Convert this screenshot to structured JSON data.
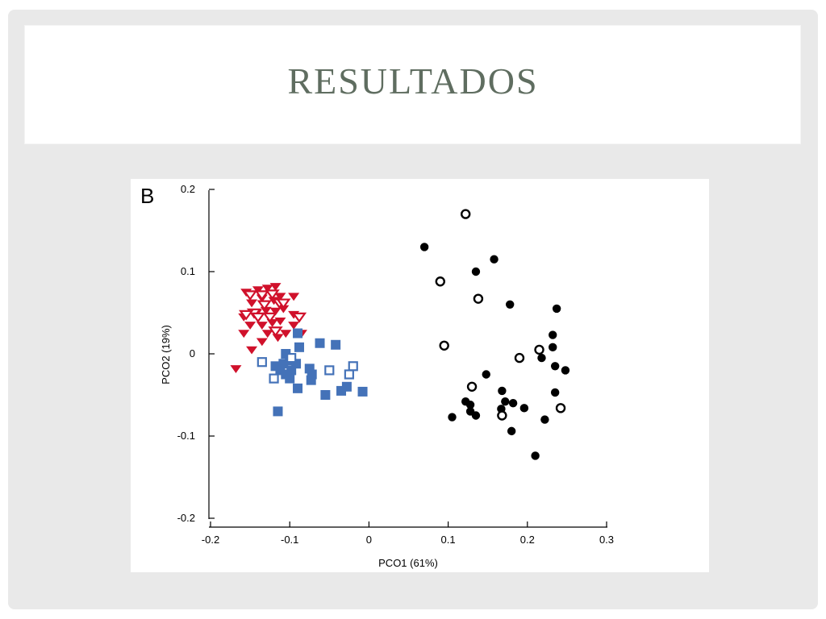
{
  "slide": {
    "title": "RESULTADOS",
    "title_color": "#5f6d60",
    "background_color": "#e9e9e9"
  },
  "chart_data": {
    "type": "scatter",
    "panel_label": "B",
    "xlabel": "PCO1 (61%)",
    "ylabel": "PCO2 (19%)",
    "xlim": [
      -0.2,
      0.3
    ],
    "ylim": [
      -0.2,
      0.2
    ],
    "xticks": [
      -0.2,
      -0.1,
      0,
      0.1,
      0.2,
      0.3
    ],
    "xtick_labels": [
      "-0.2",
      "-0.1",
      "0",
      "0.1",
      "0.2",
      "0.3"
    ],
    "yticks": [
      -0.2,
      -0.1,
      0,
      0.1,
      0.2
    ],
    "ytick_labels": [
      "-0.2",
      "-0.1",
      "0",
      "0.1",
      "0.2"
    ],
    "grid": false,
    "legend": "none",
    "series": [
      {
        "marker": "triangle-down-filled",
        "color": "#d0112b",
        "points": [
          [
            -0.155,
            0.075
          ],
          [
            -0.14,
            0.078
          ],
          [
            -0.128,
            0.08
          ],
          [
            -0.118,
            0.082
          ],
          [
            -0.148,
            0.062
          ],
          [
            -0.135,
            0.068
          ],
          [
            -0.12,
            0.065
          ],
          [
            -0.112,
            0.07
          ],
          [
            -0.095,
            0.07
          ],
          [
            -0.158,
            0.045
          ],
          [
            -0.142,
            0.05
          ],
          [
            -0.13,
            0.053
          ],
          [
            -0.118,
            0.052
          ],
          [
            -0.108,
            0.055
          ],
          [
            -0.095,
            0.048
          ],
          [
            -0.15,
            0.035
          ],
          [
            -0.135,
            0.035
          ],
          [
            -0.122,
            0.038
          ],
          [
            -0.112,
            0.04
          ],
          [
            -0.095,
            0.035
          ],
          [
            -0.158,
            0.025
          ],
          [
            -0.128,
            0.025
          ],
          [
            -0.105,
            0.025
          ],
          [
            -0.085,
            0.025
          ],
          [
            -0.148,
            0.005
          ],
          [
            -0.135,
            0.015
          ],
          [
            -0.115,
            0.02
          ],
          [
            -0.168,
            -0.018
          ]
        ]
      },
      {
        "marker": "triangle-down-open",
        "color": "#d0112b",
        "points": [
          [
            -0.15,
            0.072
          ],
          [
            -0.135,
            0.072
          ],
          [
            -0.122,
            0.073
          ],
          [
            -0.145,
            0.05
          ],
          [
            -0.132,
            0.06
          ],
          [
            -0.113,
            0.062
          ],
          [
            -0.108,
            0.062
          ],
          [
            -0.155,
            0.048
          ],
          [
            -0.125,
            0.045
          ],
          [
            -0.088,
            0.045
          ],
          [
            -0.14,
            0.045
          ],
          [
            -0.118,
            0.028
          ]
        ]
      },
      {
        "marker": "square-filled",
        "color": "#4472b8",
        "points": [
          [
            -0.09,
            0.025
          ],
          [
            -0.088,
            0.008
          ],
          [
            -0.062,
            0.013
          ],
          [
            -0.042,
            0.011
          ],
          [
            -0.105,
            0.0
          ],
          [
            -0.118,
            -0.015
          ],
          [
            -0.108,
            -0.012
          ],
          [
            -0.1,
            -0.008
          ],
          [
            -0.092,
            -0.012
          ],
          [
            -0.112,
            -0.02
          ],
          [
            -0.105,
            -0.025
          ],
          [
            -0.098,
            -0.02
          ],
          [
            -0.075,
            -0.018
          ],
          [
            -0.072,
            -0.025
          ],
          [
            -0.073,
            -0.032
          ],
          [
            -0.1,
            -0.03
          ],
          [
            -0.09,
            -0.042
          ],
          [
            -0.055,
            -0.05
          ],
          [
            -0.035,
            -0.045
          ],
          [
            -0.028,
            -0.04
          ],
          [
            -0.008,
            -0.046
          ],
          [
            -0.115,
            -0.07
          ]
        ]
      },
      {
        "marker": "square-open",
        "color": "#4472b8",
        "points": [
          [
            -0.135,
            -0.01
          ],
          [
            -0.098,
            -0.005
          ],
          [
            -0.12,
            -0.03
          ],
          [
            -0.05,
            -0.02
          ],
          [
            -0.025,
            -0.025
          ],
          [
            -0.02,
            -0.015
          ]
        ]
      },
      {
        "marker": "circle-filled",
        "color": "#000000",
        "points": [
          [
            0.07,
            0.13
          ],
          [
            0.158,
            0.115
          ],
          [
            0.135,
            0.1
          ],
          [
            0.178,
            0.06
          ],
          [
            0.237,
            0.055
          ],
          [
            0.232,
            0.023
          ],
          [
            0.232,
            0.008
          ],
          [
            0.218,
            -0.005
          ],
          [
            0.235,
            -0.015
          ],
          [
            0.248,
            -0.02
          ],
          [
            0.148,
            -0.025
          ],
          [
            0.168,
            -0.045
          ],
          [
            0.235,
            -0.047
          ],
          [
            0.122,
            -0.058
          ],
          [
            0.128,
            -0.062
          ],
          [
            0.172,
            -0.058
          ],
          [
            0.182,
            -0.06
          ],
          [
            0.196,
            -0.066
          ],
          [
            0.167,
            -0.067
          ],
          [
            0.128,
            -0.07
          ],
          [
            0.135,
            -0.075
          ],
          [
            0.105,
            -0.077
          ],
          [
            0.222,
            -0.08
          ],
          [
            0.18,
            -0.094
          ],
          [
            0.21,
            -0.124
          ]
        ]
      },
      {
        "marker": "circle-open",
        "color": "#000000",
        "points": [
          [
            0.122,
            0.17
          ],
          [
            0.09,
            0.088
          ],
          [
            0.138,
            0.067
          ],
          [
            0.095,
            0.01
          ],
          [
            0.215,
            0.005
          ],
          [
            0.19,
            -0.005
          ],
          [
            0.13,
            -0.04
          ],
          [
            0.242,
            -0.066
          ],
          [
            0.168,
            -0.075
          ]
        ]
      }
    ]
  }
}
